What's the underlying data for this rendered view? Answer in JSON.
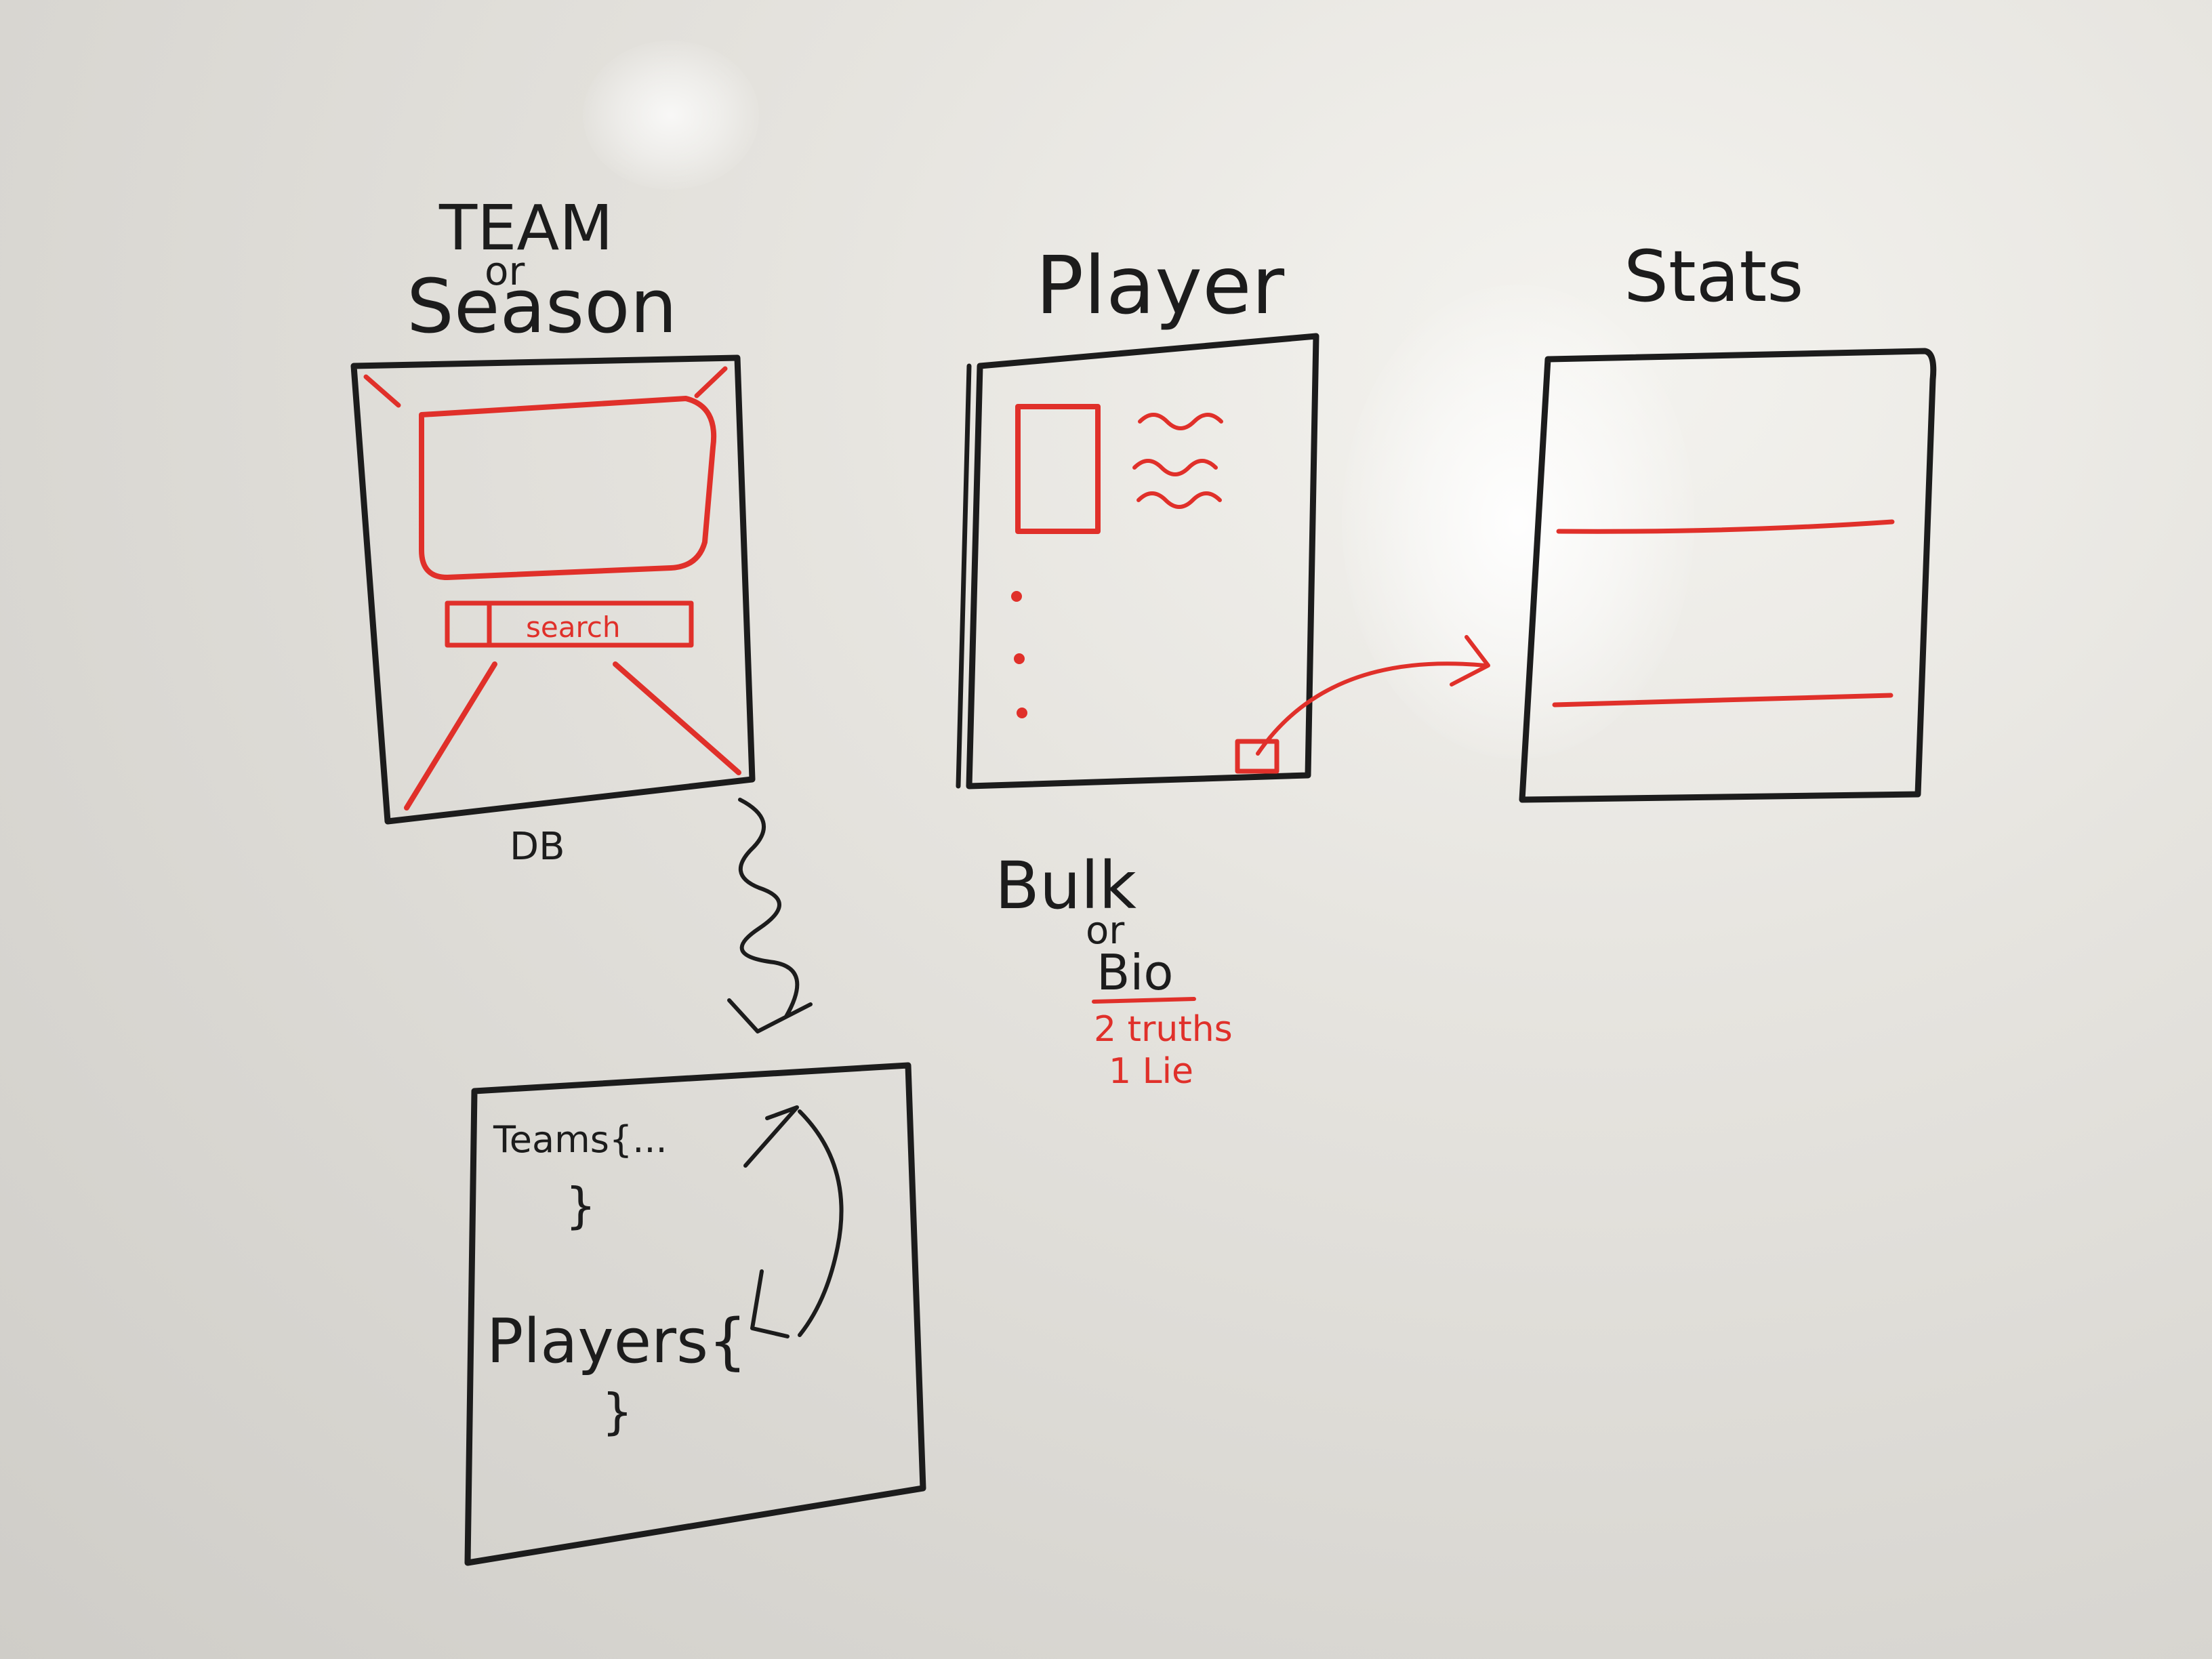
{
  "labels": {
    "team_line1": "TEAM",
    "team_line2": "or",
    "team_line3": "Season",
    "player": "Player",
    "stats": "Stats",
    "db": "DB",
    "search": "search",
    "bulk": "Bulk",
    "bulk_or": "or",
    "bio": "Bio",
    "truths": "2 truths",
    "lie": "1 Lie",
    "teams": "Teams{...",
    "teams_close": "}",
    "players": "Players{",
    "players_close": "}"
  },
  "colors": {
    "black_marker": "#1c1c1c",
    "red_marker": "#e0302a",
    "board": "#e6e4df"
  }
}
